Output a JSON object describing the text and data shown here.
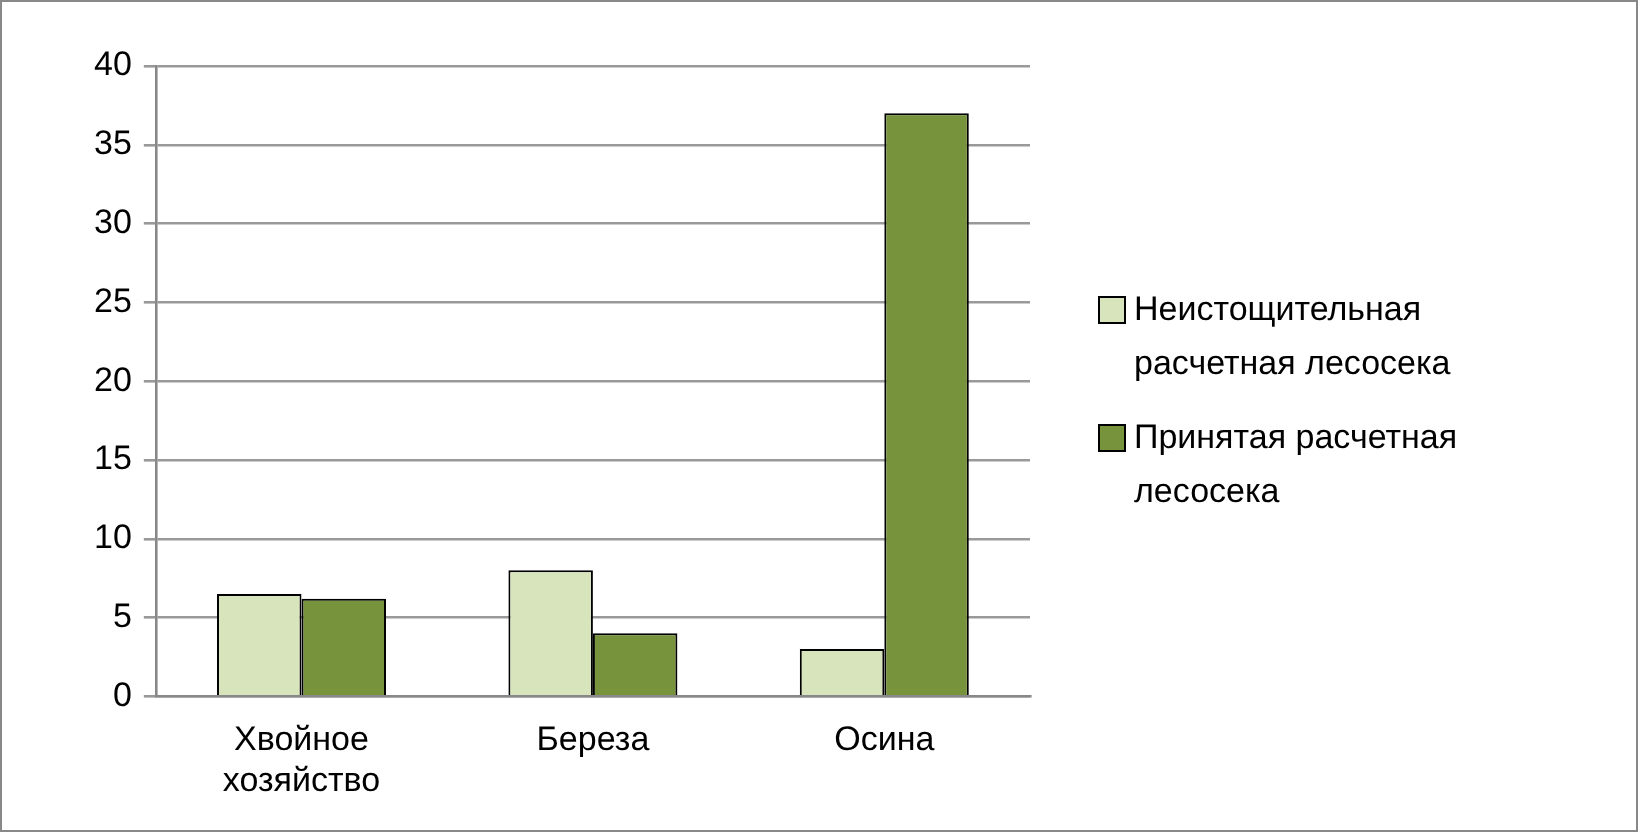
{
  "chart_data": {
    "type": "bar",
    "categories": [
      "Хвойное хозяйство",
      "Береза",
      "Осина"
    ],
    "series": [
      {
        "name": "Неистощительная расчетная лесосека",
        "color": "#d8e4bc",
        "values": [
          6.5,
          8,
          3
        ]
      },
      {
        "name": "Принятая расчетная лесосека",
        "color": "#77933c",
        "values": [
          6.2,
          4,
          37
        ]
      }
    ],
    "ylim": [
      0,
      40
    ],
    "yticks": [
      0,
      5,
      10,
      15,
      20,
      25,
      30,
      35,
      40
    ],
    "grid": "y",
    "legend": "right"
  }
}
